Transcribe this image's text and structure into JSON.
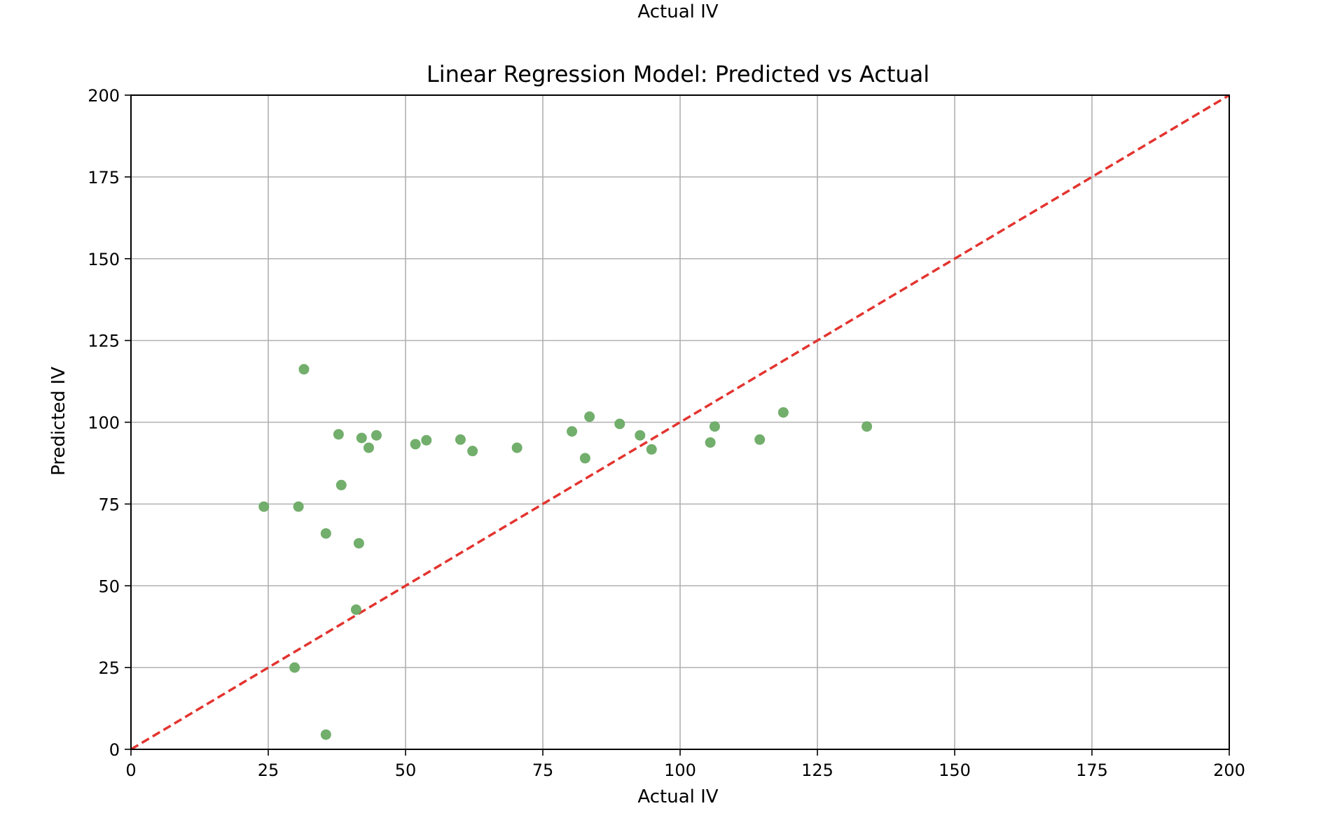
{
  "header_text": "Actual IV",
  "chart_data": {
    "type": "scatter",
    "title": "Linear Regression Model: Predicted vs Actual",
    "xlabel": "Actual IV",
    "ylabel": "Predicted IV",
    "xlim": [
      0,
      200
    ],
    "ylim": [
      0,
      200
    ],
    "xticks": [
      0,
      25,
      50,
      75,
      100,
      125,
      150,
      175,
      200
    ],
    "yticks": [
      0,
      25,
      50,
      75,
      100,
      125,
      150,
      175,
      200
    ],
    "grid": true,
    "point_color": "#6aaa64",
    "reference_line": {
      "from": [
        0,
        0
      ],
      "to": [
        200,
        200
      ],
      "color": "#e3342f",
      "style": "dashed"
    },
    "points": [
      [
        24.2,
        74.2
      ],
      [
        30.5,
        74.2
      ],
      [
        31.5,
        116.2
      ],
      [
        29.8,
        25.0
      ],
      [
        35.5,
        66.0
      ],
      [
        35.5,
        4.5
      ],
      [
        37.8,
        96.3
      ],
      [
        38.3,
        80.8
      ],
      [
        41.0,
        42.7
      ],
      [
        41.5,
        63.0
      ],
      [
        42.0,
        95.2
      ],
      [
        43.3,
        92.2
      ],
      [
        44.7,
        96.0
      ],
      [
        51.8,
        93.3
      ],
      [
        53.8,
        94.5
      ],
      [
        60.0,
        94.7
      ],
      [
        62.2,
        91.2
      ],
      [
        70.3,
        92.2
      ],
      [
        80.3,
        97.2
      ],
      [
        82.7,
        89.0
      ],
      [
        83.5,
        101.7
      ],
      [
        89.0,
        99.5
      ],
      [
        92.7,
        96.0
      ],
      [
        94.8,
        91.7
      ],
      [
        105.5,
        93.8
      ],
      [
        106.3,
        98.7
      ],
      [
        114.5,
        94.7
      ],
      [
        118.8,
        103.0
      ],
      [
        134.0,
        98.7
      ]
    ]
  }
}
